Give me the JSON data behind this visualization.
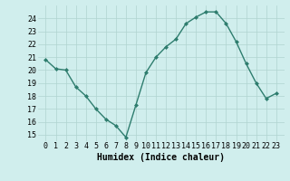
{
  "x": [
    0,
    1,
    2,
    3,
    4,
    5,
    6,
    7,
    8,
    9,
    10,
    11,
    12,
    13,
    14,
    15,
    16,
    17,
    18,
    19,
    20,
    21,
    22,
    23
  ],
  "y": [
    20.8,
    20.1,
    20.0,
    18.7,
    18.0,
    17.0,
    16.2,
    15.7,
    14.8,
    17.3,
    19.8,
    21.0,
    21.8,
    22.4,
    23.6,
    24.1,
    24.5,
    24.5,
    23.6,
    22.2,
    20.5,
    19.0,
    17.8,
    18.2
  ],
  "line_color": "#2e7d6e",
  "marker": "D",
  "markersize": 2,
  "linewidth": 1.0,
  "bg_color": "#d0eeed",
  "grid_color": "#b0d4d0",
  "xlabel": "Humidex (Indice chaleur)",
  "xlabel_fontsize": 7,
  "tick_fontsize": 6,
  "ylim": [
    14.5,
    25.0
  ],
  "yticks": [
    15,
    16,
    17,
    18,
    19,
    20,
    21,
    22,
    23,
    24
  ],
  "xticks": [
    0,
    1,
    2,
    3,
    4,
    5,
    6,
    7,
    8,
    9,
    10,
    11,
    12,
    13,
    14,
    15,
    16,
    17,
    18,
    19,
    20,
    21,
    22,
    23
  ]
}
